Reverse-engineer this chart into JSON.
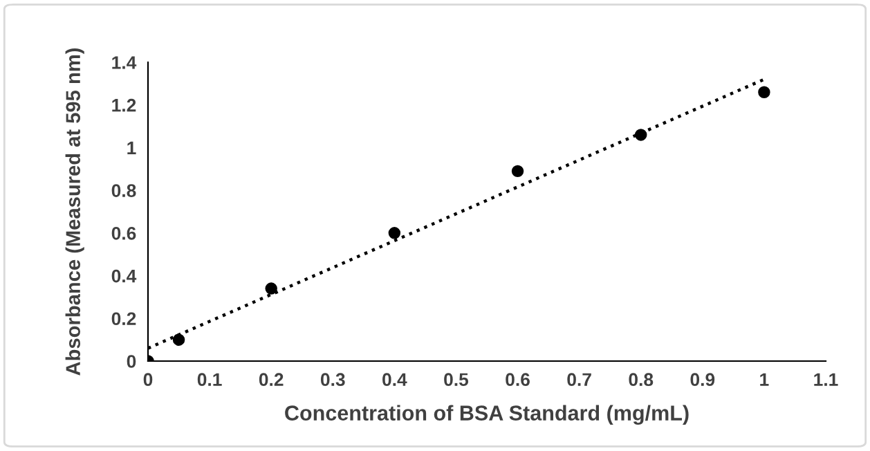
{
  "chart_data": {
    "type": "scatter",
    "xlabel": "Concentration of BSA Standard (mg/mL)",
    "ylabel": "Absorbance (Measured at 595 nm)",
    "xlim": [
      0,
      1.1
    ],
    "xticks": [
      0,
      0.1,
      0.2,
      0.3,
      0.4,
      0.5,
      0.6,
      0.7,
      0.8,
      0.9,
      1,
      1.1
    ],
    "ylim": [
      0,
      1.4
    ],
    "yticks": [
      0,
      0.2,
      0.4,
      0.6,
      0.8,
      1,
      1.2,
      1.4
    ],
    "grid": false,
    "legend": false,
    "series": [
      {
        "color": "#000000",
        "marker": "circle",
        "x": [
          0,
          0.05,
          0.2,
          0.4,
          0.6,
          0.8,
          1
        ],
        "values": [
          0,
          0.1,
          0.34,
          0.6,
          0.89,
          1.06,
          1.26
        ]
      },
      {
        "type": "line",
        "color": "#000000",
        "marker": "none",
        "line_style": "dotted",
        "x": [
          0,
          1
        ],
        "values": [
          0.06,
          1.32
        ]
      }
    ]
  }
}
